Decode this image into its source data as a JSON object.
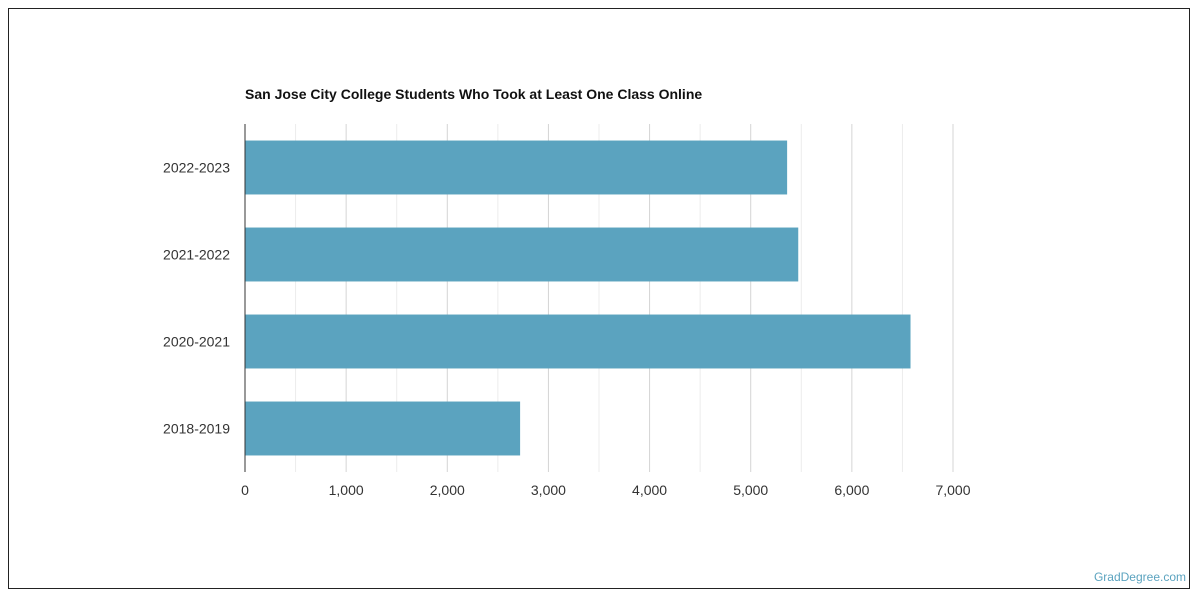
{
  "chart_data": {
    "type": "bar",
    "orientation": "horizontal",
    "title": "San Jose City College Students Who Took at Least One Class Online",
    "categories": [
      "2022-2023",
      "2021-2022",
      "2020-2021",
      "2018-2019"
    ],
    "values": [
      5360,
      5470,
      6580,
      2720
    ],
    "xlim": [
      0,
      7000
    ],
    "xticks": [
      "0",
      "1,000",
      "2,000",
      "3,000",
      "4,000",
      "5,000",
      "6,000",
      "7,000"
    ],
    "grid": true,
    "bar_color": "#5ba3bf"
  },
  "credit": "GradDegree.com"
}
